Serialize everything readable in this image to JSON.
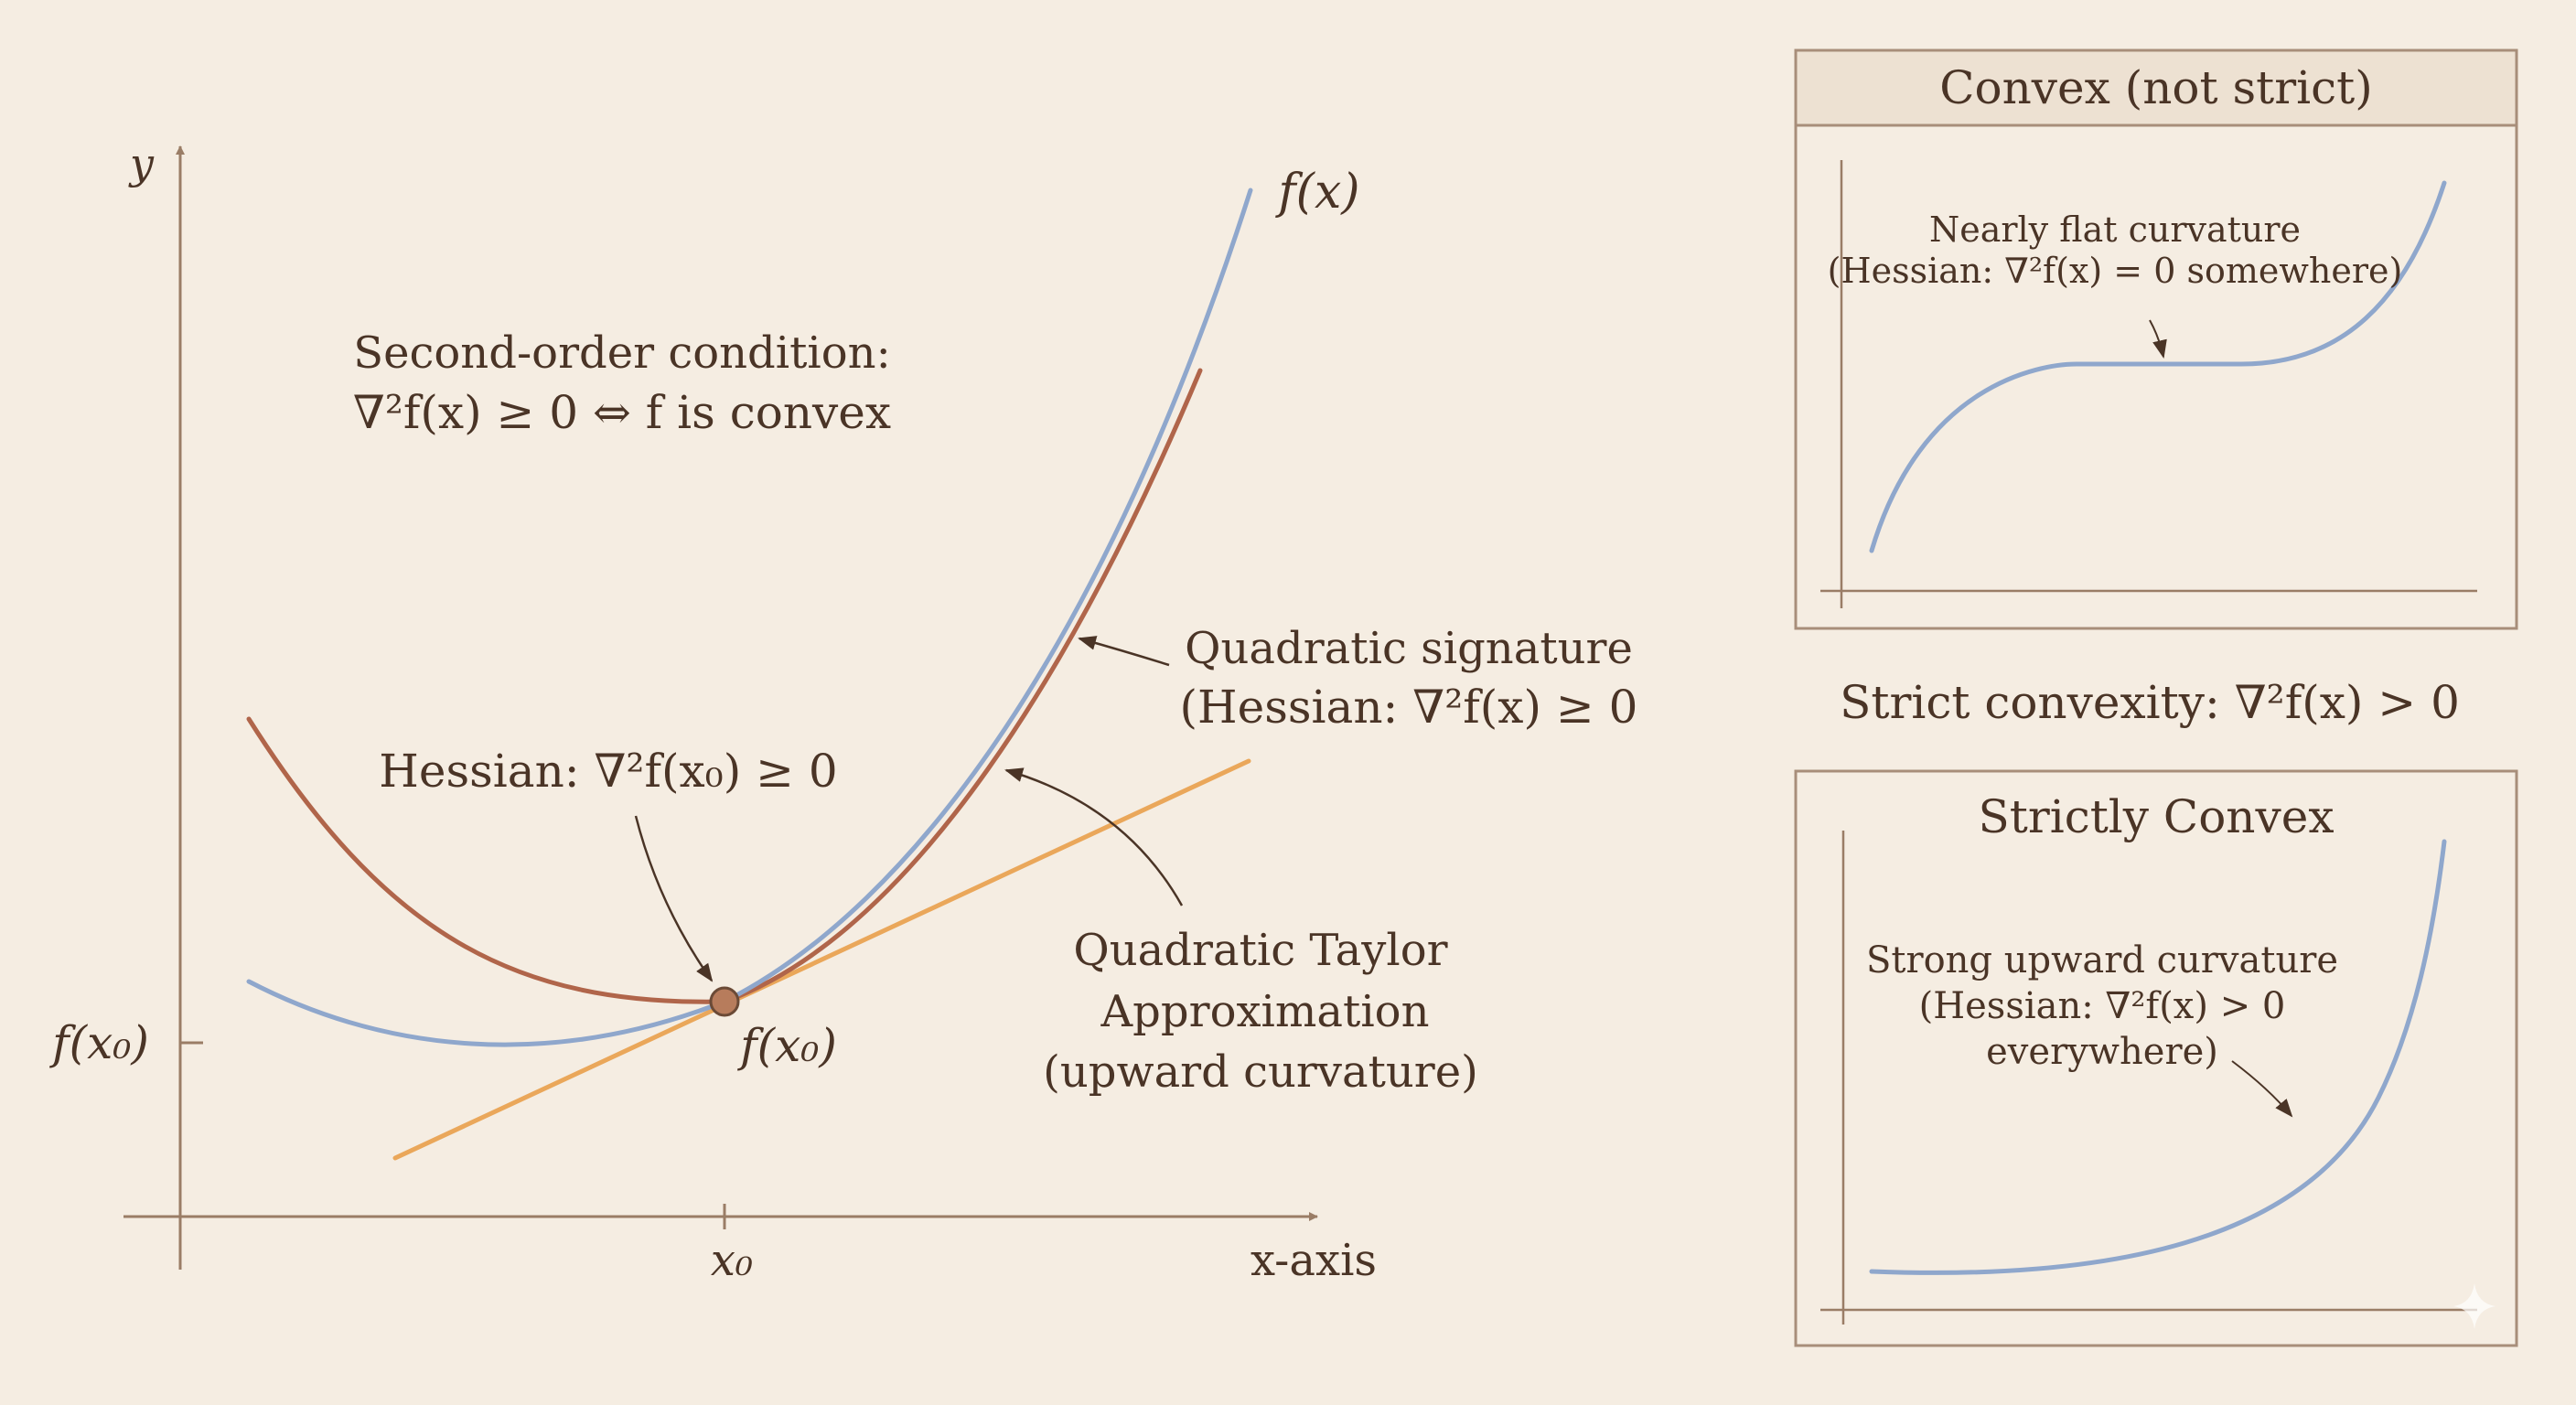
{
  "main_plot": {
    "y_axis_label": "y",
    "x_axis_label": "x-axis",
    "x_tick_label": "x₀",
    "y_tick_label": "f(x₀)",
    "point_label": "f(x₀)",
    "function_label": "f(x)",
    "condition_line1": "Second-order condition:",
    "condition_line2": "∇²f(x) ≥ 0 ⇔ f is convex",
    "hessian_point_label": "Hessian: ∇²f(x₀) ≥ 0",
    "signature_line1": "Quadratic signature",
    "signature_line2": "(Hessian: ∇²f(x) ≥ 0",
    "taylor_line1": "Quadratic Taylor",
    "taylor_line2": "Approximation",
    "taylor_line3": "(upward curvature)"
  },
  "strict_caption": "Strict convexity: ∇²f(x) > 0",
  "panel_convex": {
    "title": "Convex (not strict)",
    "note_line1": "Nearly flat curvature",
    "note_line2": "(Hessian: ∇²f(x) = 0 somewhere)"
  },
  "panel_strict": {
    "title": "Strictly Convex",
    "note_line1": "Strong upward curvature",
    "note_line2": "(Hessian: ∇²f(x) > 0",
    "note_line3": "everywhere)"
  },
  "colors": {
    "background": "#f5ede2",
    "function_curve": "#8fa7cc",
    "taylor_curve": "#b0654a",
    "tangent_line": "#eaa75a",
    "axis": "#9a7d66",
    "text": "#4a3426",
    "panel_header": "#ede1d2"
  }
}
